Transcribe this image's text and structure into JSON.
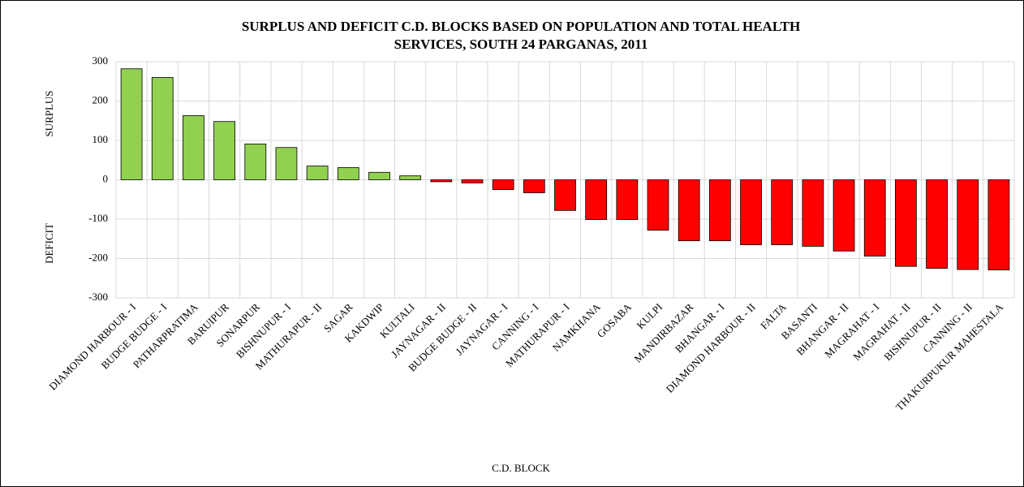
{
  "chart_data": {
    "type": "bar",
    "title": [
      "SURPLUS AND DEFICIT C.D. BLOCKS BASED ON POPULATION AND TOTAL HEALTH",
      "SERVICES, SOUTH 24 PARGANAS, 2011"
    ],
    "x_label": "C.D. BLOCK",
    "annotations": [
      "SURPLUS",
      "DEFICIT"
    ],
    "categories": [
      "DIAMOND HARBOUR - I",
      "BUDGE BUDGE - I",
      "PATHARPRATIMA",
      "BARUIPUR",
      "SONARPUR",
      "BISHNUPUR - I",
      "MATHURAPUR - II",
      "SAGAR",
      "KAKDWIP",
      "KULTALI",
      "JAYNAGAR - II",
      "BUDGE BUDGE - II",
      "JAYNAGAR - I",
      "CANNING - I",
      "MATHURAPUR - I",
      "NAMKHANA",
      "GOSABA",
      "KULPI",
      "MANDIRBAZAR",
      "BHANGAR - I",
      "DIAMOND HARBOUR - II",
      "FALTA",
      "BASANTI",
      "BHANGAR - II",
      "MAGRAHAT - I",
      "MAGRAHAT - II",
      "BISHNUPUR - II",
      "CANNING - II",
      "THAKURPUKUR MAHESTALA"
    ],
    "values": [
      282,
      260,
      163,
      148,
      91,
      82,
      35,
      31,
      19,
      10,
      -5,
      -8,
      -25,
      -33,
      -78,
      -101,
      -101,
      -128,
      -155,
      -155,
      -165,
      -165,
      -169,
      -181,
      -194,
      -220,
      -225,
      -228,
      -229
    ],
    "positive_color": "#92d050",
    "negative_color": "#ff0000",
    "ylim": [
      -300,
      300
    ],
    "yticks": [
      -300,
      -200,
      -100,
      0,
      100,
      200,
      300
    ],
    "grid": true
  }
}
